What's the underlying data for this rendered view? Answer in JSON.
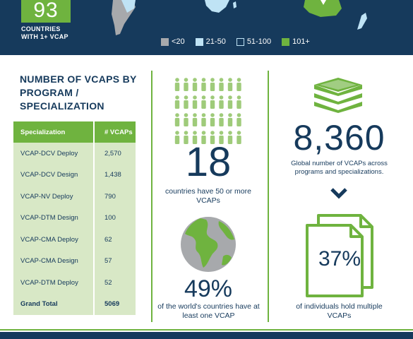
{
  "header": {
    "country_count": "93",
    "caption_line1": "COUNTRIES",
    "caption_line2": "WITH 1+ VCAP",
    "legend": [
      {
        "label": "<20",
        "color": "#a7a9ac"
      },
      {
        "label": "21-50",
        "color": "#bfe3f5"
      },
      {
        "label": "51-100",
        "color": "#163a5c"
      },
      {
        "label": "101+",
        "color": "#6fb33f"
      }
    ]
  },
  "programs": {
    "title": "NUMBER OF VCAPs BY PROGRAM / SPECIALIZATION",
    "columns": [
      "Specialization",
      "# VCAPs"
    ],
    "rows": [
      {
        "name": "VCAP-DCV Deploy",
        "value": "2,570"
      },
      {
        "name": "VCAP-DCV Design",
        "value": "1,438"
      },
      {
        "name": "VCAP-NV Deploy",
        "value": "790"
      },
      {
        "name": "VCAP-DTM Design",
        "value": "100"
      },
      {
        "name": "VCAP-CMA Deploy",
        "value": "62"
      },
      {
        "name": "VCAP-CMA Design",
        "value": "57"
      },
      {
        "name": "VCAP-DTM Deploy",
        "value": "52"
      }
    ],
    "total": {
      "name": "Grand Total",
      "value": "5069"
    }
  },
  "stats": {
    "countries_50": {
      "value": "18",
      "caption": "countries have 50 or more VCAPs"
    },
    "world_pct": {
      "value": "49%",
      "caption": "of the world's countries have at least one VCAP"
    },
    "global_total": {
      "value": "8,360",
      "caption": "Global number of VCAPs across programs and specializations."
    },
    "multiple_pct": {
      "value": "37%",
      "caption": "of individuals hold multiple VCAPs"
    }
  },
  "colors": {
    "navy": "#163a5c",
    "green": "#6fb33f",
    "light_green": "#d8e8c6"
  },
  "icons": [
    "people-grid-icon",
    "globe-icon",
    "stacked-layers-icon",
    "chevron-down-icon",
    "document-icon",
    "world-map"
  ]
}
